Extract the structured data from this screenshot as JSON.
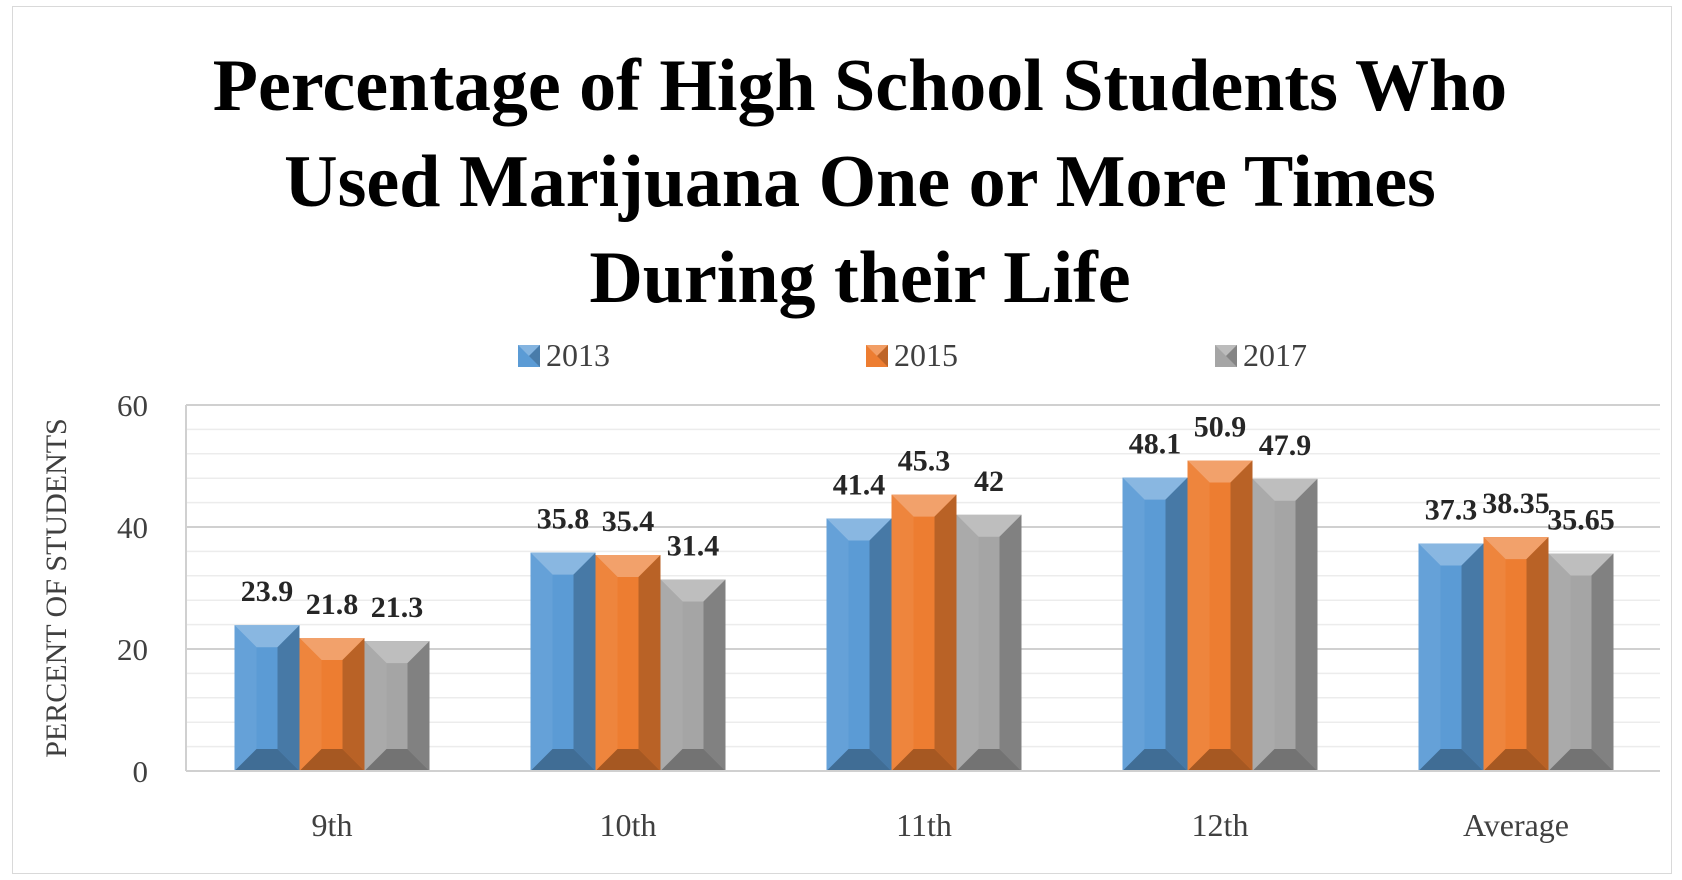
{
  "chart_data": {
    "type": "bar",
    "title_lines": [
      "Percentage of High School Students Who",
      "Used Marijuana One or More Times",
      "During their Life"
    ],
    "xlabel": "",
    "ylabel": "PERCENT OF STUDENTS",
    "ylim": [
      0,
      60
    ],
    "y_ticks": [
      "0",
      "20",
      "40",
      "60"
    ],
    "grid": true,
    "legend_position": "top",
    "categories": [
      "9th",
      "10th",
      "11th",
      "12th",
      "Average"
    ],
    "series": [
      {
        "name": "2013",
        "values": [
          23.9,
          35.8,
          41.4,
          48.1,
          37.3
        ],
        "labels": [
          "23.9",
          "35.8",
          "41.4",
          "48.1",
          "37.3"
        ],
        "color": "#5b9bd5"
      },
      {
        "name": "2015",
        "values": [
          21.8,
          35.4,
          45.3,
          50.9,
          38.35
        ],
        "labels": [
          "21.8",
          "35.4",
          "45.3",
          "50.9",
          "38.35"
        ],
        "color": "#ed7d31"
      },
      {
        "name": "2017",
        "values": [
          21.3,
          31.4,
          42,
          47.9,
          35.65
        ],
        "labels": [
          "21.3",
          "31.4",
          "42",
          "47.9",
          "35.65"
        ],
        "color": "#a5a5a5"
      }
    ]
  }
}
